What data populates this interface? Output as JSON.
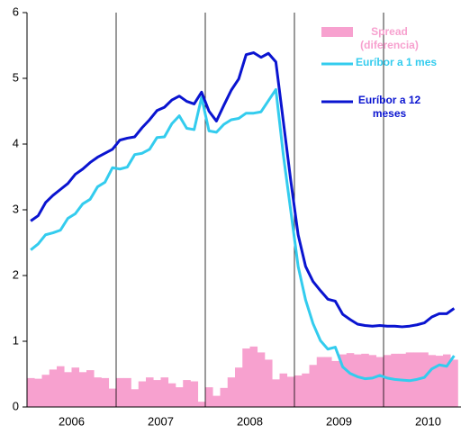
{
  "chart_data": {
    "type": "bar-line",
    "categories": [
      null,
      null,
      null,
      null,
      null,
      null,
      "2006",
      null,
      null,
      null,
      null,
      null,
      null,
      null,
      null,
      null,
      null,
      null,
      "2007",
      null,
      null,
      null,
      null,
      null,
      null,
      null,
      null,
      null,
      null,
      null,
      "2008",
      null,
      null,
      null,
      null,
      null,
      null,
      null,
      null,
      null,
      null,
      null,
      "2009",
      null,
      null,
      null,
      null,
      null,
      null,
      null,
      null,
      null,
      null,
      null,
      "2010",
      null,
      null,
      null
    ],
    "series": [
      {
        "name": "Spread (diferencia)",
        "type": "bar",
        "color": "#f7a1cf",
        "values": [
          0.44,
          0.43,
          0.49,
          0.57,
          0.62,
          0.53,
          0.6,
          0.53,
          0.56,
          0.45,
          0.44,
          0.28,
          0.44,
          0.44,
          0.27,
          0.39,
          0.45,
          0.41,
          0.45,
          0.36,
          0.3,
          0.41,
          0.39,
          0.08,
          0.3,
          0.17,
          0.29,
          0.45,
          0.6,
          0.89,
          0.92,
          0.83,
          0.72,
          0.42,
          0.51,
          0.46,
          0.48,
          0.51,
          0.64,
          0.76,
          0.76,
          0.7,
          0.8,
          0.82,
          0.8,
          0.81,
          0.79,
          0.76,
          0.79,
          0.81,
          0.81,
          0.83,
          0.83,
          0.83,
          0.79,
          0.78,
          0.8,
          0.72
        ]
      },
      {
        "name": "Euríbor a 1 mes",
        "type": "line",
        "color": "#33ccee",
        "values": [
          2.39,
          2.48,
          2.62,
          2.65,
          2.69,
          2.87,
          2.94,
          3.09,
          3.16,
          3.35,
          3.42,
          3.64,
          3.62,
          3.65,
          3.84,
          3.86,
          3.92,
          4.1,
          4.11,
          4.31,
          4.43,
          4.24,
          4.22,
          4.71,
          4.2,
          4.18,
          4.3,
          4.37,
          4.39,
          4.47,
          4.47,
          4.49,
          4.66,
          4.83,
          3.84,
          2.99,
          2.14,
          1.63,
          1.27,
          1.01,
          0.88,
          0.91,
          0.61,
          0.51,
          0.46,
          0.43,
          0.44,
          0.48,
          0.44,
          0.42,
          0.41,
          0.4,
          0.42,
          0.45,
          0.58,
          0.64,
          0.62,
          0.78
        ]
      },
      {
        "name": "Euríbor a 12 meses",
        "type": "line",
        "color": "#0a14d0",
        "values": [
          2.83,
          2.91,
          3.11,
          3.22,
          3.31,
          3.4,
          3.54,
          3.62,
          3.72,
          3.8,
          3.86,
          3.92,
          4.06,
          4.09,
          4.11,
          4.25,
          4.37,
          4.51,
          4.56,
          4.67,
          4.73,
          4.65,
          4.61,
          4.79,
          4.5,
          4.35,
          4.59,
          4.82,
          4.99,
          5.36,
          5.39,
          5.32,
          5.38,
          5.25,
          4.35,
          3.45,
          2.62,
          2.14,
          1.91,
          1.77,
          1.64,
          1.61,
          1.41,
          1.33,
          1.26,
          1.24,
          1.23,
          1.24,
          1.23,
          1.23,
          1.22,
          1.23,
          1.25,
          1.28,
          1.37,
          1.42,
          1.42,
          1.5
        ]
      }
    ],
    "ylim": [
      0,
      6
    ],
    "yticks": [
      0,
      1,
      2,
      3,
      4,
      5,
      6
    ]
  }
}
